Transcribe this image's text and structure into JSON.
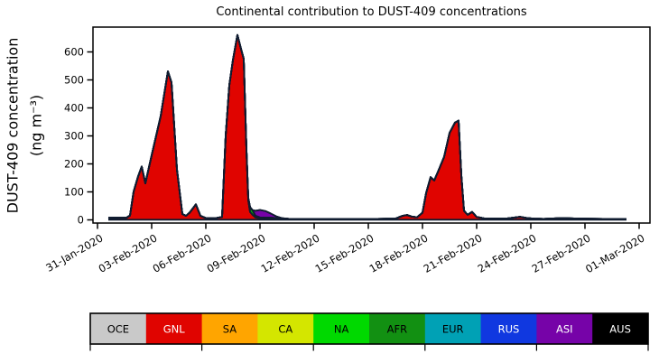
{
  "chart_data": {
    "type": "area",
    "title": "Continental contribution to DUST-409 concentrations",
    "ylabel_lines": [
      "DUST-409 concentration",
      "(ng m⁻³)"
    ],
    "yticks": [
      0,
      100,
      200,
      300,
      400,
      500,
      600
    ],
    "ylim": [
      -12,
      690
    ],
    "grid": false,
    "outline_color": "#101c30",
    "axis_color": "#000000",
    "xticks": [
      {
        "day": 0,
        "label": "31-Jan-2020"
      },
      {
        "day": 3,
        "label": "03-Feb-2020"
      },
      {
        "day": 6,
        "label": "06-Feb-2020"
      },
      {
        "day": 9,
        "label": "09-Feb-2020"
      },
      {
        "day": 12,
        "label": "12-Feb-2020"
      },
      {
        "day": 15,
        "label": "15-Feb-2020"
      },
      {
        "day": 18,
        "label": "18-Feb-2020"
      },
      {
        "day": 21,
        "label": "21-Feb-2020"
      },
      {
        "day": 24,
        "label": "24-Feb-2020"
      },
      {
        "day": 27,
        "label": "27-Feb-2020"
      },
      {
        "day": 30,
        "label": "01-Mar-2020"
      }
    ],
    "x_days": [
      0.6,
      0.8,
      1.0,
      1.3,
      1.6,
      1.8,
      2.0,
      2.25,
      2.45,
      2.65,
      3.0,
      3.5,
      3.9,
      4.1,
      4.4,
      4.7,
      4.9,
      5.1,
      5.45,
      5.7,
      6.0,
      6.5,
      6.9,
      7.1,
      7.3,
      7.5,
      7.75,
      7.95,
      8.1,
      8.25,
      8.35,
      8.45,
      8.6,
      8.75,
      9.0,
      9.3,
      9.6,
      9.9,
      10.2,
      10.6,
      11.5,
      12.5,
      13.5,
      14.5,
      15.5,
      16.5,
      16.9,
      17.15,
      17.4,
      17.7,
      18.0,
      18.2,
      18.45,
      18.65,
      18.9,
      19.2,
      19.5,
      19.8,
      20.0,
      20.15,
      20.3,
      20.5,
      20.75,
      21.0,
      21.4,
      22.0,
      22.6,
      23.0,
      23.4,
      23.8,
      24.2,
      24.7,
      25.0,
      25.4,
      25.8,
      26.2,
      27.0,
      28.0,
      29.0,
      29.3
    ],
    "series": [
      {
        "name": "OCE",
        "color": "#c9c9c9",
        "values": [
          0.5,
          0.5,
          0.5,
          0.5,
          0.5,
          0.5,
          0.5,
          0.5,
          0.5,
          0.5,
          0.5,
          0.5,
          0.5,
          0.5,
          0.5,
          0.5,
          0.5,
          0.5,
          0.5,
          0.5,
          0.5,
          0.5,
          0.5,
          0.5,
          0.5,
          0.5,
          0.5,
          0.5,
          0.5,
          0.5,
          0.5,
          0.5,
          0.5,
          0.5,
          0.5,
          0.5,
          0.5,
          0.5,
          0.5,
          0.5,
          0.5,
          0.5,
          0.5,
          0.5,
          0.5,
          0.5,
          0.5,
          0.5,
          0.5,
          0.5,
          0.5,
          0.5,
          0.5,
          0.5,
          0.5,
          0.5,
          0.5,
          0.5,
          0.5,
          0.5,
          0.5,
          0.5,
          0.5,
          0.5,
          0.5,
          0.5,
          0.5,
          0.5,
          0.5,
          0.5,
          0.5,
          0.5,
          0.5,
          0.5,
          0.5,
          0.5,
          0.5,
          0.5,
          0.5,
          0.5
        ]
      },
      {
        "name": "GNL",
        "color": "#e00400",
        "values": [
          3,
          4,
          6,
          7,
          7,
          15,
          100,
          155,
          190,
          130,
          230,
          370,
          530,
          490,
          180,
          20,
          14,
          25,
          55,
          14,
          6,
          5,
          10,
          300,
          480,
          570,
          660,
          610,
          575,
          250,
          70,
          28,
          17,
          8,
          5,
          4,
          4,
          4,
          4,
          3,
          3,
          3,
          3,
          3,
          3,
          4,
          14,
          17,
          11,
          9,
          25,
          95,
          152,
          140,
          178,
          225,
          310,
          347,
          354,
          160,
          32,
          18,
          28,
          10,
          5,
          4,
          4,
          7,
          10,
          6,
          4,
          3,
          3,
          3,
          3,
          3,
          3,
          3,
          3,
          3
        ]
      },
      {
        "name": "SA",
        "color": "#ffa500",
        "values": [
          0,
          0,
          0,
          0,
          0,
          0,
          0,
          0,
          0,
          0,
          0,
          0,
          0,
          0,
          0,
          0,
          0,
          0,
          0,
          0,
          0,
          0,
          0,
          0,
          0,
          0,
          0,
          0,
          0,
          0,
          0,
          0,
          0,
          0,
          0,
          0,
          0,
          0,
          0,
          0,
          0,
          0,
          0,
          0,
          0,
          0,
          0,
          0,
          0,
          0,
          0,
          0,
          0,
          0,
          0,
          0,
          0,
          0,
          0,
          0,
          0,
          0,
          0,
          0,
          0,
          0,
          0,
          0,
          0,
          0,
          0,
          0,
          0,
          0,
          0,
          0,
          0,
          0,
          0,
          0
        ]
      },
      {
        "name": "CA",
        "color": "#d4e600",
        "values": [
          0,
          0,
          0,
          0,
          0,
          0,
          0,
          0,
          0,
          0,
          0,
          0,
          0,
          0,
          0,
          0,
          0,
          0,
          0,
          0,
          0,
          0,
          0,
          0,
          0,
          0,
          0,
          0,
          0,
          0,
          0,
          0,
          0,
          2,
          3,
          3,
          3,
          2,
          1,
          0,
          0,
          0,
          0,
          0,
          0,
          0,
          0,
          0,
          0,
          0,
          0,
          0,
          0,
          0,
          0,
          0,
          0,
          0,
          0,
          0,
          0,
          0,
          0,
          0,
          0,
          0,
          0,
          0,
          0,
          0,
          0,
          0,
          0,
          0,
          0,
          0,
          0,
          0,
          0,
          0
        ]
      },
      {
        "name": "NA",
        "color": "#00d900",
        "values": [
          4,
          3,
          2,
          0,
          0,
          0,
          0,
          0,
          0,
          0,
          0,
          0,
          0,
          0,
          0,
          0,
          0,
          0,
          0,
          0,
          0,
          0,
          0,
          0,
          0,
          0,
          0,
          0,
          0,
          0,
          8,
          17,
          15,
          4,
          0,
          0,
          0,
          0,
          0,
          0,
          0,
          0,
          0,
          0,
          0,
          0,
          0,
          0,
          0,
          0,
          0,
          0,
          0,
          0,
          0,
          0,
          0,
          0,
          0,
          0,
          0,
          0,
          0,
          0,
          0,
          0,
          0,
          0,
          0,
          0,
          0,
          0,
          1,
          2,
          3,
          2,
          1,
          0,
          0,
          0
        ]
      },
      {
        "name": "AFR",
        "color": "#129012",
        "values": [
          0,
          0,
          0,
          0,
          0,
          0,
          0,
          0,
          0,
          0,
          0,
          0,
          0,
          0,
          0,
          0,
          0,
          0,
          0,
          0,
          0,
          0,
          0,
          0,
          0,
          0,
          0,
          0,
          0,
          0,
          0,
          0,
          0,
          0,
          0,
          0,
          0,
          0,
          0,
          0,
          0,
          0,
          0,
          0,
          0,
          0,
          0,
          0,
          0,
          0,
          0,
          0,
          0,
          0,
          0,
          0,
          0,
          0,
          0,
          0,
          0,
          0,
          0,
          0,
          0,
          0,
          0,
          0,
          0,
          0,
          0,
          0,
          0,
          0,
          0,
          0,
          0,
          0,
          0,
          0
        ]
      },
      {
        "name": "EUR",
        "color": "#00a1b5",
        "values": [
          0,
          0,
          0,
          0,
          0,
          0,
          0,
          0,
          0,
          0,
          0,
          0,
          0,
          0,
          0,
          0,
          0,
          0,
          0,
          0,
          0,
          0,
          0,
          0,
          0,
          0,
          0,
          0,
          0,
          0,
          0,
          0,
          0,
          0,
          0,
          0,
          0,
          0,
          0,
          0,
          0,
          0,
          0,
          0,
          0,
          0,
          0,
          0,
          0,
          0,
          0,
          0,
          0,
          0,
          0,
          0,
          0,
          0,
          0,
          0,
          0,
          0,
          0,
          0,
          0,
          0,
          0,
          0,
          0,
          0,
          0,
          0,
          0,
          0,
          0,
          0,
          0,
          0,
          0,
          0
        ]
      },
      {
        "name": "RUS",
        "color": "#1038e0",
        "values": [
          0,
          0,
          0,
          0,
          0,
          0,
          0,
          0,
          0,
          0,
          0,
          0,
          0,
          0,
          0,
          0,
          0,
          0,
          0,
          0,
          0,
          0,
          0,
          0,
          0,
          0,
          0,
          0,
          0,
          0,
          0,
          0,
          0,
          0,
          0,
          0,
          0,
          0,
          0,
          0,
          0,
          0,
          0,
          0,
          0,
          0,
          0,
          0,
          0,
          0,
          0,
          0,
          0,
          0,
          0,
          0,
          0,
          0,
          0,
          0,
          0,
          0,
          0,
          0,
          0,
          0,
          0,
          0,
          0,
          0,
          0,
          0,
          0,
          0,
          0,
          0,
          0,
          0,
          0,
          0
        ]
      },
      {
        "name": "ASI",
        "color": "#7603a8",
        "values": [
          0,
          0,
          0,
          0,
          0,
          0,
          0,
          0,
          0,
          0,
          0,
          0,
          0,
          0,
          0,
          0,
          0,
          0,
          0,
          0,
          0,
          0,
          0,
          0,
          0,
          0,
          0,
          0,
          0,
          0,
          0,
          0,
          2,
          18,
          27,
          24,
          15,
          6,
          1,
          0,
          0,
          0,
          0,
          0,
          0,
          0,
          0,
          0,
          0,
          0,
          0,
          0,
          0,
          0,
          0,
          0,
          0,
          0,
          0,
          0,
          0,
          0,
          0,
          0,
          0,
          0,
          0,
          0,
          0,
          0,
          0,
          0,
          0,
          0,
          0,
          0,
          0,
          0,
          0,
          0
        ]
      },
      {
        "name": "AUS",
        "color": "#000000",
        "values": [
          0,
          0,
          0,
          0,
          0,
          0,
          0,
          0,
          0,
          0,
          0,
          0,
          0,
          0,
          0,
          0,
          0,
          0,
          0,
          0,
          0,
          0,
          0,
          0,
          0,
          0,
          0,
          0,
          0,
          0,
          0,
          0,
          0,
          0,
          0,
          0,
          0,
          0,
          0,
          0,
          0,
          0,
          0,
          0,
          0,
          0,
          0,
          0,
          0,
          0,
          0,
          0,
          0,
          0,
          0,
          0,
          0,
          0,
          0,
          0,
          0,
          0,
          0,
          0,
          0,
          0,
          0,
          0,
          0,
          0,
          0,
          0,
          0,
          0,
          0,
          0,
          0,
          0,
          0,
          0
        ]
      }
    ],
    "legend": {
      "labels": [
        "OCE",
        "GNL",
        "SA",
        "CA",
        "NA",
        "AFR",
        "EUR",
        "RUS",
        "ASI",
        "AUS"
      ],
      "position": "bottom",
      "tick_values": [
        0,
        2,
        4,
        6,
        8,
        10
      ],
      "value_range": [
        0,
        10
      ]
    }
  }
}
